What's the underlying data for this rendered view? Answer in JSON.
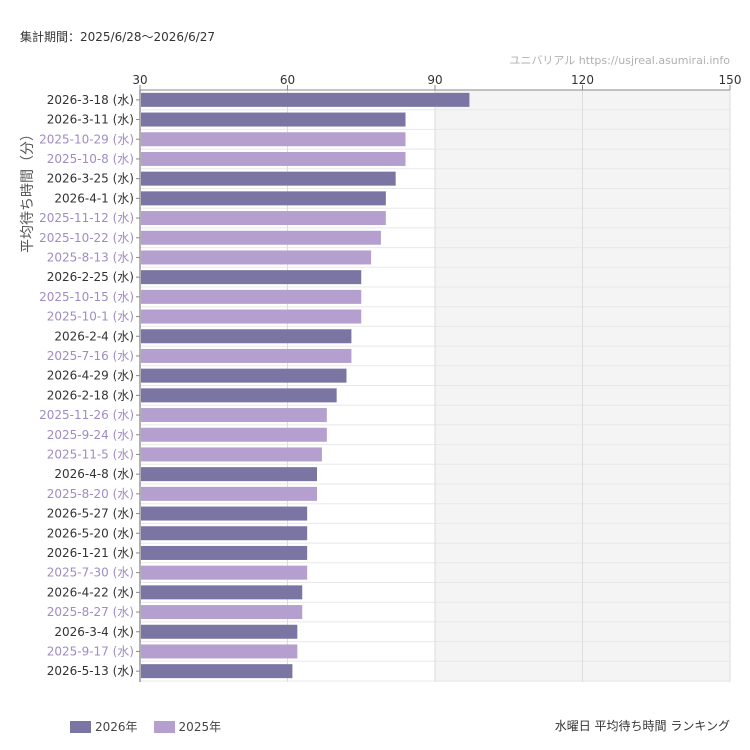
{
  "header": {
    "period": "集計期間：2025/6/28〜2026/6/27",
    "source": "ユニバリアル  https://usjreal.asumirai.info"
  },
  "footer": {
    "caption": "水曜日 平均待ち時間 ランキング"
  },
  "colors": {
    "2026": "#7b75a3",
    "2025": "#b49fcf",
    "band": "#f4f4f4",
    "grid": "#dddddd"
  },
  "chart_data": {
    "type": "bar",
    "orientation": "horizontal",
    "ylabel": "平均待ち時間（分）",
    "xlim": [
      30,
      150
    ],
    "ticks": [
      30,
      60,
      90,
      120,
      150
    ],
    "grid": true,
    "shaded_ranges": [
      [
        90,
        120
      ],
      [
        120,
        150
      ]
    ],
    "legend_placement": "bottom-left",
    "legend": [
      {
        "name": "2026年",
        "key": "2026"
      },
      {
        "name": "2025年",
        "key": "2025"
      }
    ],
    "bars": [
      {
        "label": "2026-3-18 (水)",
        "value": 97,
        "series": "2026"
      },
      {
        "label": "2026-3-11 (水)",
        "value": 84,
        "series": "2026"
      },
      {
        "label": "2025-10-29 (水)",
        "value": 84,
        "series": "2025"
      },
      {
        "label": "2025-10-8 (水)",
        "value": 84,
        "series": "2025"
      },
      {
        "label": "2026-3-25 (水)",
        "value": 82,
        "series": "2026"
      },
      {
        "label": "2026-4-1 (水)",
        "value": 80,
        "series": "2026"
      },
      {
        "label": "2025-11-12 (水)",
        "value": 80,
        "series": "2025"
      },
      {
        "label": "2025-10-22 (水)",
        "value": 79,
        "series": "2025"
      },
      {
        "label": "2025-8-13 (水)",
        "value": 77,
        "series": "2025"
      },
      {
        "label": "2026-2-25 (水)",
        "value": 75,
        "series": "2026"
      },
      {
        "label": "2025-10-15 (水)",
        "value": 75,
        "series": "2025"
      },
      {
        "label": "2025-10-1 (水)",
        "value": 75,
        "series": "2025"
      },
      {
        "label": "2026-2-4 (水)",
        "value": 73,
        "series": "2026"
      },
      {
        "label": "2025-7-16 (水)",
        "value": 73,
        "series": "2025"
      },
      {
        "label": "2026-4-29 (水)",
        "value": 72,
        "series": "2026"
      },
      {
        "label": "2026-2-18 (水)",
        "value": 70,
        "series": "2026"
      },
      {
        "label": "2025-11-26 (水)",
        "value": 68,
        "series": "2025"
      },
      {
        "label": "2025-9-24 (水)",
        "value": 68,
        "series": "2025"
      },
      {
        "label": "2025-11-5 (水)",
        "value": 67,
        "series": "2025"
      },
      {
        "label": "2026-4-8 (水)",
        "value": 66,
        "series": "2026"
      },
      {
        "label": "2025-8-20 (水)",
        "value": 66,
        "series": "2025"
      },
      {
        "label": "2026-5-27 (水)",
        "value": 64,
        "series": "2026"
      },
      {
        "label": "2026-5-20 (水)",
        "value": 64,
        "series": "2026"
      },
      {
        "label": "2026-1-21 (水)",
        "value": 64,
        "series": "2026"
      },
      {
        "label": "2025-7-30 (水)",
        "value": 64,
        "series": "2025"
      },
      {
        "label": "2026-4-22 (水)",
        "value": 63,
        "series": "2026"
      },
      {
        "label": "2025-8-27 (水)",
        "value": 63,
        "series": "2025"
      },
      {
        "label": "2026-3-4 (水)",
        "value": 62,
        "series": "2026"
      },
      {
        "label": "2025-9-17 (水)",
        "value": 62,
        "series": "2025"
      },
      {
        "label": "2026-5-13 (水)",
        "value": 61,
        "series": "2026"
      }
    ]
  }
}
